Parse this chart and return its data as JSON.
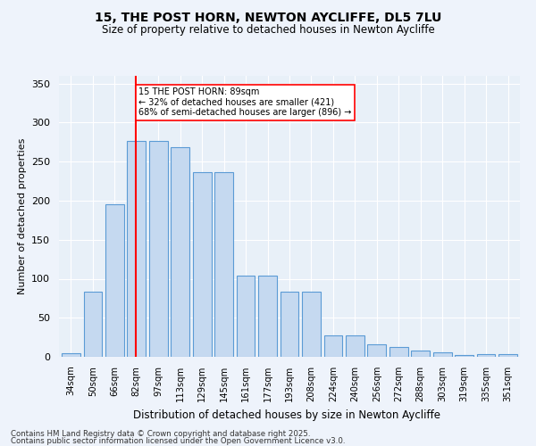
{
  "title1": "15, THE POST HORN, NEWTON AYCLIFFE, DL5 7LU",
  "title2": "Size of property relative to detached houses in Newton Aycliffe",
  "xlabel": "Distribution of detached houses by size in Newton Aycliffe",
  "ylabel": "Number of detached properties",
  "categories": [
    "34sqm",
    "50sqm",
    "66sqm",
    "82sqm",
    "97sqm",
    "113sqm",
    "129sqm",
    "145sqm",
    "161sqm",
    "177sqm",
    "193sqm",
    "208sqm",
    "224sqm",
    "240sqm",
    "256sqm",
    "272sqm",
    "288sqm",
    "303sqm",
    "319sqm",
    "335sqm",
    "351sqm"
  ],
  "values": [
    5,
    84,
    195,
    277,
    277,
    268,
    237,
    237,
    104,
    104,
    83,
    83,
    27,
    27,
    16,
    13,
    8,
    6,
    2,
    3,
    3
  ],
  "bar_color": "#c5d9f0",
  "bar_edge_color": "#5b9bd5",
  "annotation_text": "15 THE POST HORN: 89sqm\n← 32% of detached houses are smaller (421)\n68% of semi-detached houses are larger (896) →",
  "footer1": "Contains HM Land Registry data © Crown copyright and database right 2025.",
  "footer2": "Contains public sector information licensed under the Open Government Licence v3.0.",
  "ylim": [
    0,
    360
  ],
  "yticks": [
    0,
    50,
    100,
    150,
    200,
    250,
    300,
    350
  ],
  "bg_color": "#eef3fb",
  "plot_bg_color": "#e8f0f8"
}
